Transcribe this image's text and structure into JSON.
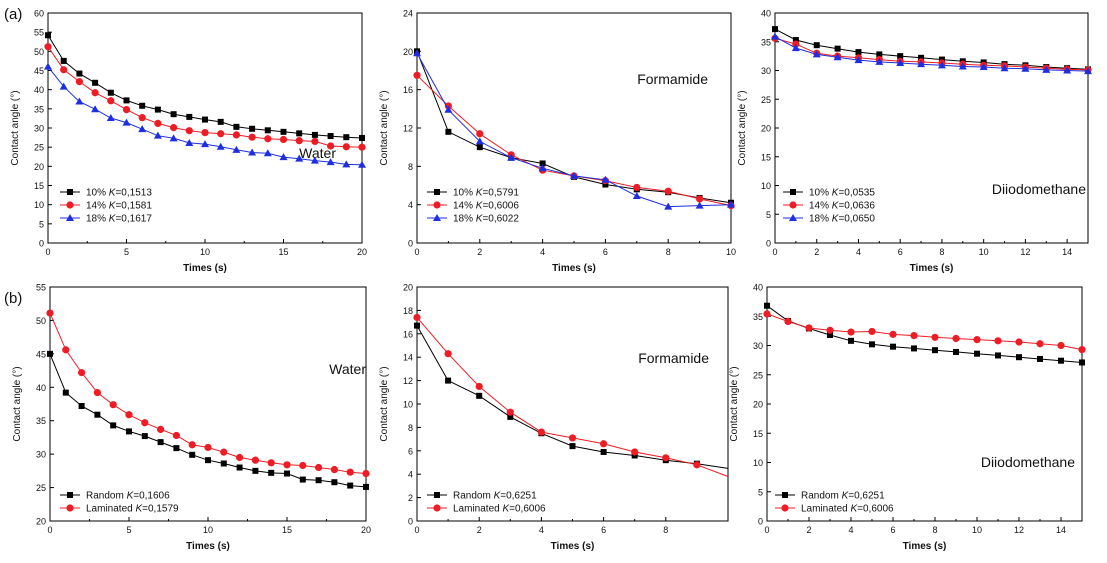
{
  "panel_labels": [
    "(a)",
    "(b)"
  ],
  "chart_data": [
    {
      "type": "line",
      "row": "a",
      "annotation": "Water",
      "xlabel": "Times (s)",
      "ylabel": "Contact angle (°)",
      "xlim": [
        0,
        20
      ],
      "ylim": [
        0,
        60
      ],
      "xticks": [
        0,
        5,
        10,
        15,
        20
      ],
      "yticks": [
        0,
        5,
        10,
        15,
        20,
        25,
        30,
        35,
        40,
        45,
        50,
        55,
        60
      ],
      "legend_position": "bottom-left",
      "series": [
        {
          "name": "10% K=0,1513",
          "legend_prefix": "10% ",
          "legend_k": "0,1513",
          "marker": "square",
          "color": "#000000",
          "x": [
            0,
            1,
            2,
            3,
            4,
            5,
            6,
            7,
            8,
            9,
            10,
            11,
            12,
            13,
            14,
            15,
            16,
            17,
            18,
            19,
            20
          ],
          "y": [
            54.2,
            47.5,
            44.2,
            41.8,
            39.2,
            37.2,
            35.8,
            34.8,
            33.6,
            32.9,
            32.2,
            31.6,
            30.3,
            29.8,
            29.4,
            29.0,
            28.6,
            28.2,
            27.9,
            27.6,
            27.4
          ]
        },
        {
          "name": "14% K=0,1581",
          "legend_prefix": "14% ",
          "legend_k": "0,1581",
          "marker": "circle",
          "color": "#ee1c24",
          "x": [
            0,
            1,
            2,
            3,
            4,
            5,
            6,
            7,
            8,
            9,
            10,
            11,
            12,
            13,
            14,
            15,
            16,
            17,
            18,
            19,
            20
          ],
          "y": [
            51.2,
            45.2,
            42.1,
            39.2,
            37.1,
            34.8,
            32.7,
            31.2,
            30.1,
            29.3,
            28.8,
            28.5,
            28.2,
            27.6,
            27.2,
            27.0,
            26.7,
            26.5,
            25.3,
            25.1,
            25.0
          ]
        },
        {
          "name": "18% K=0,1617",
          "legend_prefix": "18% ",
          "legend_k": "0,1617",
          "marker": "triangle",
          "color": "#1f2fe0",
          "x": [
            0,
            1,
            2,
            3,
            4,
            5,
            6,
            7,
            8,
            9,
            10,
            11,
            12,
            13,
            14,
            15,
            16,
            17,
            18,
            19,
            20
          ],
          "y": [
            46.0,
            40.8,
            36.9,
            34.9,
            32.6,
            31.4,
            29.7,
            28.0,
            27.3,
            26.1,
            25.8,
            25.1,
            24.3,
            23.6,
            23.4,
            22.4,
            22.0,
            21.5,
            21.1,
            20.5,
            20.4
          ]
        }
      ]
    },
    {
      "type": "line",
      "row": "a",
      "annotation": "Formamide",
      "xlabel": "Times (s)",
      "ylabel": "Contact angle (°)",
      "xlim": [
        0,
        10
      ],
      "ylim": [
        0,
        24
      ],
      "xticks": [
        0,
        2,
        4,
        6,
        8,
        10
      ],
      "yticks": [
        0,
        4,
        8,
        12,
        16,
        20,
        24
      ],
      "legend_position": "bottom-left",
      "series": [
        {
          "name": "10% K=0,5791",
          "legend_prefix": "10% ",
          "legend_k": "0,5791",
          "marker": "square",
          "color": "#000000",
          "x": [
            0,
            1,
            2,
            3,
            4,
            5,
            6,
            7,
            8,
            9,
            10
          ],
          "y": [
            20.0,
            11.6,
            10.0,
            8.9,
            8.3,
            6.9,
            6.1,
            5.6,
            5.3,
            4.7,
            4.2
          ]
        },
        {
          "name": "14% K=0,6006",
          "legend_prefix": "14% ",
          "legend_k": "0,6006",
          "marker": "circle",
          "color": "#ee1c24",
          "x": [
            0,
            1,
            2,
            3,
            4,
            5,
            6,
            7,
            8,
            9,
            10
          ],
          "y": [
            17.5,
            14.3,
            11.4,
            9.2,
            7.6,
            7.0,
            6.5,
            5.8,
            5.4,
            4.6,
            3.9
          ]
        },
        {
          "name": "18% K=0,6022",
          "legend_prefix": "18% ",
          "legend_k": "0,6022",
          "marker": "triangle",
          "color": "#1f2fe0",
          "x": [
            0,
            1,
            2,
            3,
            4,
            5,
            6,
            7,
            8,
            9,
            10
          ],
          "y": [
            19.8,
            13.9,
            10.6,
            8.9,
            7.8,
            7.0,
            6.6,
            4.9,
            3.8,
            3.9,
            4.0
          ]
        }
      ]
    },
    {
      "type": "line",
      "row": "a",
      "annotation": "Diiodomethane",
      "xlabel": "Times (s)",
      "ylabel": "Contact angle (°)",
      "xlim": [
        0,
        15
      ],
      "ylim": [
        0,
        40
      ],
      "xticks": [
        0,
        2,
        4,
        6,
        8,
        10,
        12,
        14
      ],
      "yticks": [
        0,
        5,
        10,
        15,
        20,
        25,
        30,
        35,
        40
      ],
      "legend_position": "bottom-left",
      "series": [
        {
          "name": "10% K=0,0535",
          "legend_prefix": "10% ",
          "legend_k": "0,0535",
          "marker": "square",
          "color": "#000000",
          "x": [
            0,
            1,
            2,
            3,
            4,
            5,
            6,
            7,
            8,
            9,
            10,
            11,
            12,
            13,
            14,
            15
          ],
          "y": [
            37.2,
            35.3,
            34.4,
            33.8,
            33.2,
            32.8,
            32.5,
            32.2,
            31.9,
            31.6,
            31.4,
            31.1,
            30.9,
            30.6,
            30.4,
            30.2
          ]
        },
        {
          "name": "14% K=0,0636",
          "legend_prefix": "14% ",
          "legend_k": "0,0636",
          "marker": "circle",
          "color": "#ee1c24",
          "x": [
            0,
            1,
            2,
            3,
            4,
            5,
            6,
            7,
            8,
            9,
            10,
            11,
            12,
            13,
            14,
            15
          ],
          "y": [
            35.6,
            34.6,
            33.0,
            32.5,
            32.2,
            31.9,
            31.6,
            31.5,
            31.3,
            31.1,
            30.9,
            30.8,
            30.6,
            30.4,
            30.2,
            30.1
          ]
        },
        {
          "name": "18% K=0,0650",
          "legend_prefix": "18% ",
          "legend_k": "0,0650",
          "marker": "triangle",
          "color": "#1f2fe0",
          "x": [
            0,
            1,
            2,
            3,
            4,
            5,
            6,
            7,
            8,
            9,
            10,
            11,
            12,
            13,
            14,
            15
          ],
          "y": [
            35.9,
            33.9,
            32.8,
            32.3,
            31.8,
            31.5,
            31.3,
            31.1,
            30.9,
            30.7,
            30.6,
            30.4,
            30.3,
            30.1,
            30.0,
            29.9
          ]
        }
      ]
    },
    {
      "type": "line",
      "row": "b",
      "annotation": "Water",
      "xlabel": "Times (s)",
      "ylabel": "Contact angle (°)",
      "xlim": [
        0,
        20
      ],
      "ylim": [
        20,
        55
      ],
      "xticks": [
        0,
        5,
        10,
        15,
        20
      ],
      "yticks": [
        20,
        25,
        30,
        35,
        40,
        45,
        50,
        55
      ],
      "legend_position": "bottom-left",
      "series": [
        {
          "name": "Random K=0,1606",
          "legend_prefix": "Random ",
          "legend_k": "0,1606",
          "marker": "square",
          "color": "#000000",
          "x": [
            0,
            1,
            2,
            3,
            4,
            5,
            6,
            7,
            8,
            9,
            10,
            11,
            12,
            13,
            14,
            15,
            16,
            17,
            18,
            19,
            20
          ],
          "y": [
            45.0,
            39.2,
            37.2,
            35.9,
            34.3,
            33.4,
            32.7,
            31.8,
            30.9,
            29.9,
            29.1,
            28.6,
            28.0,
            27.5,
            27.2,
            27.1,
            26.2,
            26.1,
            25.8,
            25.3,
            25.1
          ]
        },
        {
          "name": "Laminated K=0,1579",
          "legend_prefix": "Laminated ",
          "legend_k": "0,1579",
          "marker": "circle",
          "color": "#ee1c24",
          "x": [
            0,
            1,
            2,
            3,
            4,
            5,
            6,
            7,
            8,
            9,
            10,
            11,
            12,
            13,
            14,
            15,
            16,
            17,
            18,
            19,
            20
          ],
          "y": [
            51.1,
            45.6,
            42.2,
            39.2,
            37.4,
            35.9,
            34.7,
            33.7,
            32.8,
            31.4,
            31.0,
            30.3,
            29.5,
            29.1,
            28.7,
            28.4,
            28.3,
            28.0,
            27.7,
            27.3,
            27.1
          ]
        }
      ]
    },
    {
      "type": "line",
      "row": "b",
      "annotation": "Formamide",
      "xlabel": "Times (s)",
      "ylabel": "Contact angle (°)",
      "xlim": [
        0,
        10
      ],
      "ylim": [
        0,
        20
      ],
      "xticks": [
        0,
        2,
        4,
        6,
        8
      ],
      "yticks": [
        0,
        2,
        4,
        6,
        8,
        10,
        12,
        14,
        16,
        18,
        20
      ],
      "legend_position": "bottom-left",
      "series": [
        {
          "name": "Random K=0,6251",
          "legend_prefix": "Random ",
          "legend_k": "0,6251",
          "marker": "square",
          "color": "#000000",
          "x": [
            0,
            1,
            2,
            3,
            4,
            5,
            6,
            7,
            8,
            9,
            10
          ],
          "y": [
            16.7,
            12.0,
            10.7,
            8.9,
            7.5,
            6.4,
            5.9,
            5.6,
            5.2,
            4.9,
            4.5
          ],
          "markers_until": 9
        },
        {
          "name": "Laminated K=0,6006",
          "legend_prefix": "Laminated ",
          "legend_k": "0,6006",
          "marker": "circle",
          "color": "#ee1c24",
          "x": [
            0,
            1,
            2,
            3,
            4,
            5,
            6,
            7,
            8,
            9,
            10
          ],
          "y": [
            17.4,
            14.3,
            11.5,
            9.3,
            7.6,
            7.1,
            6.6,
            5.9,
            5.4,
            4.8,
            3.8
          ],
          "markers_until": 9
        }
      ]
    },
    {
      "type": "line",
      "row": "b",
      "annotation": "Diiodomethane",
      "xlabel": "Times (s)",
      "ylabel": "Contact angle (°)",
      "xlim": [
        0,
        15
      ],
      "ylim": [
        0,
        40
      ],
      "xticks": [
        0,
        2,
        4,
        6,
        8,
        10,
        12,
        14
      ],
      "yticks": [
        0,
        5,
        10,
        15,
        20,
        25,
        30,
        35,
        40
      ],
      "legend_position": "bottom-left",
      "series": [
        {
          "name": "Random K=0,6251",
          "legend_prefix": "Random ",
          "legend_k": "0,6251",
          "marker": "square",
          "color": "#000000",
          "x": [
            0,
            1,
            2,
            3,
            4,
            5,
            6,
            7,
            8,
            9,
            10,
            11,
            12,
            13,
            14,
            15
          ],
          "y": [
            36.8,
            34.2,
            32.9,
            31.8,
            30.8,
            30.2,
            29.8,
            29.5,
            29.2,
            28.9,
            28.6,
            28.3,
            28.0,
            27.7,
            27.4,
            27.1
          ]
        },
        {
          "name": "Laminated K=0,6006",
          "legend_prefix": "Laminated ",
          "legend_k": "0,6006",
          "marker": "circle",
          "color": "#ee1c24",
          "x": [
            0,
            1,
            2,
            3,
            4,
            5,
            6,
            7,
            8,
            9,
            10,
            11,
            12,
            13,
            14,
            15
          ],
          "y": [
            35.4,
            34.1,
            33.0,
            32.6,
            32.3,
            32.4,
            31.9,
            31.7,
            31.4,
            31.2,
            31.0,
            30.8,
            30.6,
            30.3,
            30.0,
            29.3
          ]
        }
      ]
    }
  ]
}
